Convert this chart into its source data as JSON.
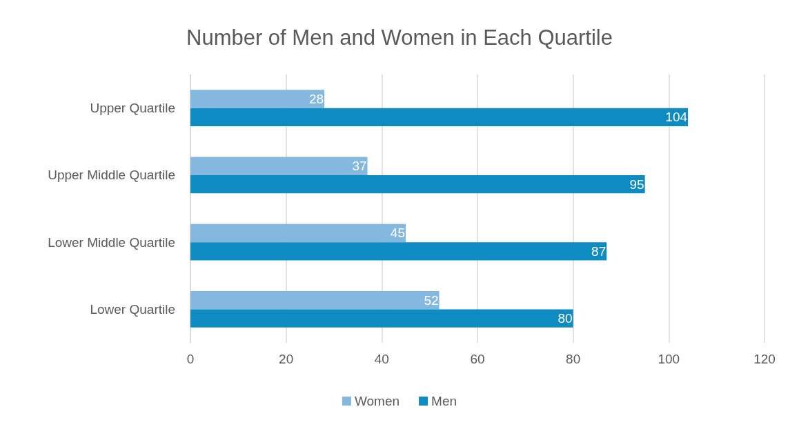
{
  "chart_data": {
    "type": "bar",
    "orientation": "horizontal",
    "title": "Number of Men and Women in Each Quartile",
    "categories": [
      "Upper Quartile",
      "Upper Middle Quartile",
      "Lower Middle Quartile",
      "Lower Quartile"
    ],
    "series": [
      {
        "name": "Women",
        "color": "#85b8df",
        "values": [
          28,
          37,
          45,
          52
        ]
      },
      {
        "name": "Men",
        "color": "#0e8bc0",
        "values": [
          104,
          95,
          87,
          80
        ]
      }
    ],
    "xlim": [
      0,
      120
    ],
    "xticks": [
      0,
      20,
      40,
      60,
      80,
      100,
      120
    ],
    "grid": "x",
    "legend": "bottom",
    "data_labels": true
  }
}
